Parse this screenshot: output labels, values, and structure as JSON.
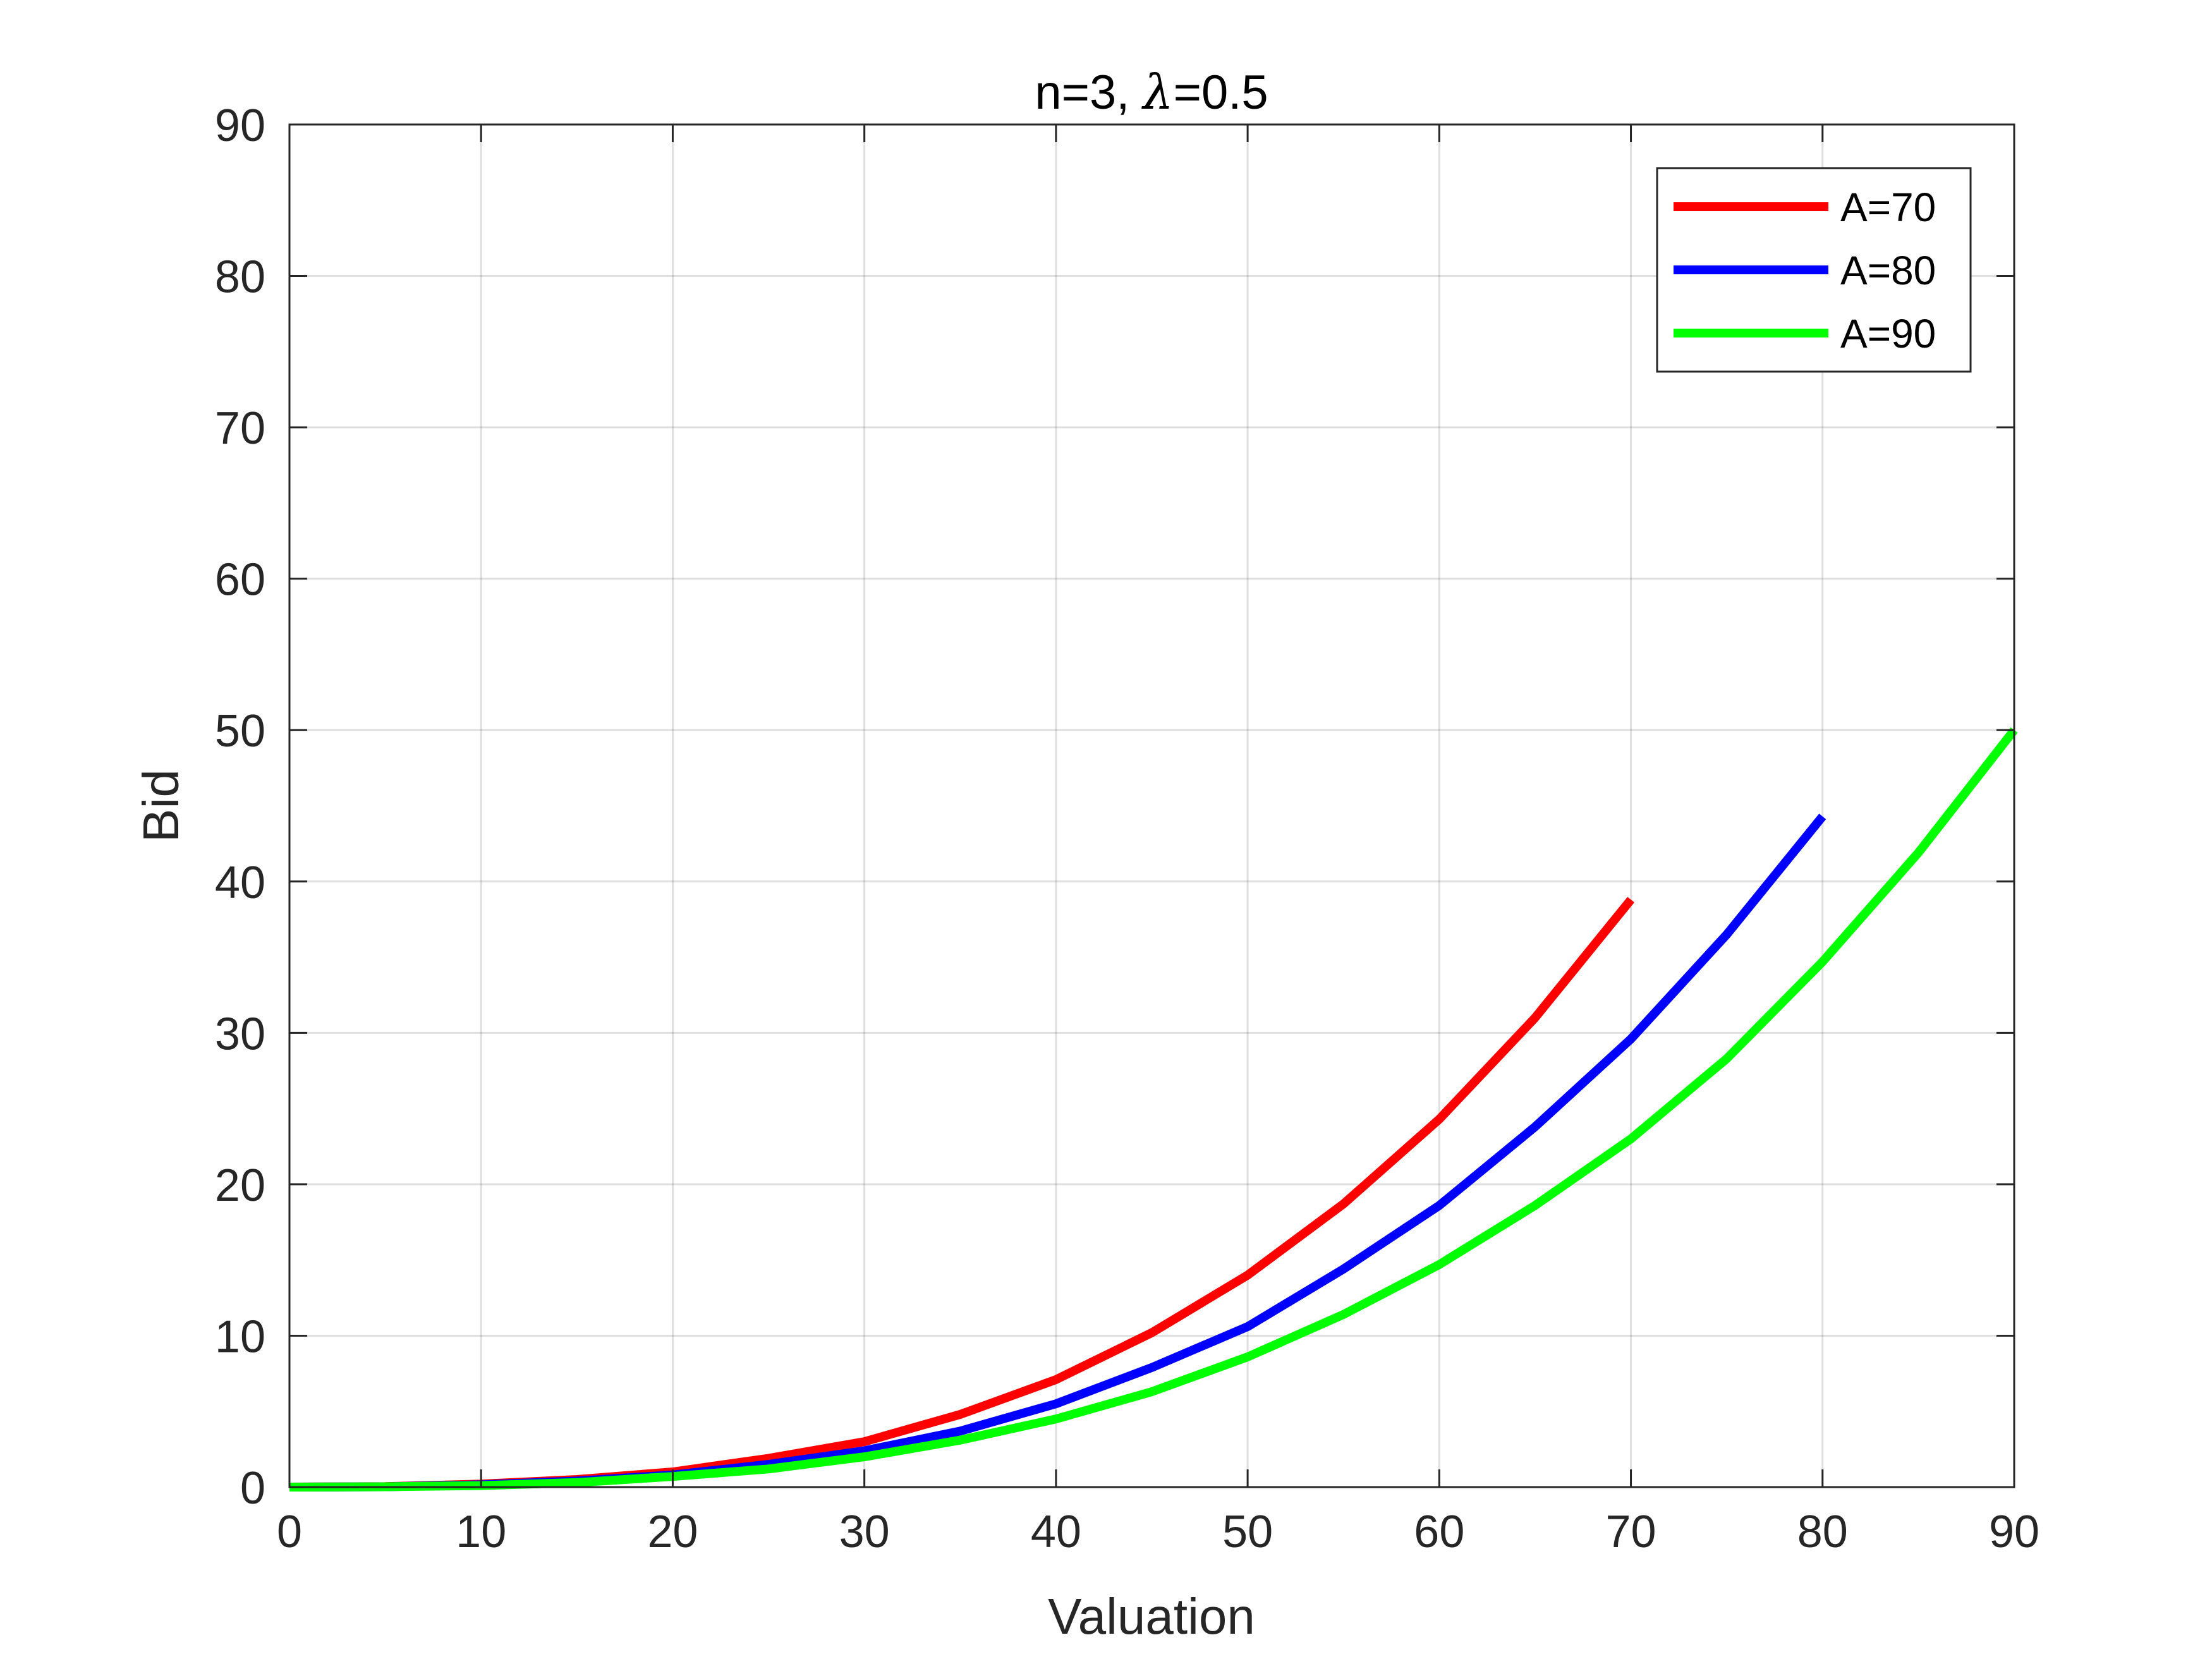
{
  "chart_data": {
    "type": "line",
    "title": {
      "prefix": "n=3, ",
      "symbol": "λ",
      "suffix": "=0.5"
    },
    "xlabel": "Valuation",
    "ylabel": "Bid",
    "xlim": [
      0,
      90
    ],
    "ylim": [
      0,
      90
    ],
    "xticks": [
      0,
      10,
      20,
      30,
      40,
      50,
      60,
      70,
      80,
      90
    ],
    "yticks": [
      0,
      10,
      20,
      30,
      40,
      50,
      60,
      70,
      80,
      90
    ],
    "xtick_labels": [
      "0",
      "10",
      "20",
      "30",
      "40",
      "50",
      "60",
      "70",
      "80",
      "90"
    ],
    "ytick_labels": [
      "0",
      "10",
      "20",
      "30",
      "40",
      "50",
      "60",
      "70",
      "80",
      "90"
    ],
    "grid": true,
    "legend_position": "top-right",
    "series": [
      {
        "name": "A=70",
        "color": "#ff0000",
        "x": [
          0,
          5,
          10,
          15,
          20,
          25,
          30,
          35,
          40,
          45,
          50,
          55,
          60,
          65,
          70
        ],
        "y": [
          0,
          0.03,
          0.2,
          0.5,
          1.0,
          1.9,
          3.0,
          4.8,
          7.1,
          10.2,
          14.0,
          18.7,
          24.3,
          31.0,
          38.8
        ]
      },
      {
        "name": "A=80",
        "color": "#0000ff",
        "x": [
          0,
          5,
          10,
          15,
          20,
          25,
          30,
          35,
          40,
          45,
          50,
          55,
          60,
          65,
          70,
          75,
          80
        ],
        "y": [
          0,
          0.02,
          0.15,
          0.4,
          0.8,
          1.5,
          2.4,
          3.7,
          5.5,
          7.9,
          10.6,
          14.4,
          18.6,
          23.8,
          29.6,
          36.5,
          44.3
        ]
      },
      {
        "name": "A=90",
        "color": "#00ff00",
        "x": [
          0,
          5,
          10,
          15,
          20,
          25,
          30,
          35,
          40,
          45,
          50,
          55,
          60,
          65,
          70,
          75,
          80,
          85,
          90
        ],
        "y": [
          0,
          0.02,
          0.1,
          0.3,
          0.7,
          1.2,
          2.0,
          3.1,
          4.5,
          6.3,
          8.6,
          11.4,
          14.7,
          18.6,
          23.0,
          28.3,
          34.7,
          41.9,
          50.0
        ]
      }
    ]
  }
}
